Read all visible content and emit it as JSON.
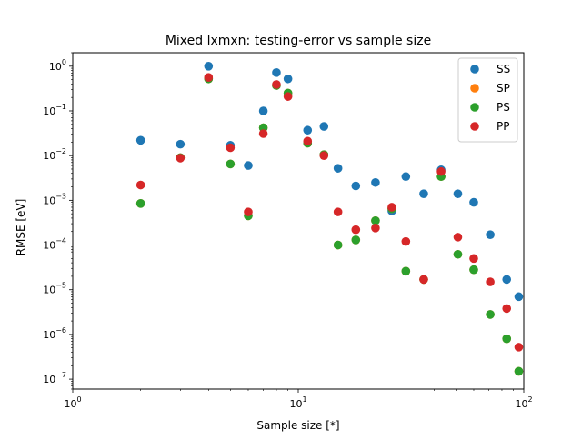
{
  "chart_data": {
    "type": "scatter",
    "title": "Mixed lxmxn: testing-error vs sample size",
    "xlabel": "Sample size [*]",
    "ylabel": "RMSE [eV]",
    "xscale": "log",
    "yscale": "log",
    "xlim": [
      1,
      100
    ],
    "ylim": [
      6e-08,
      2
    ],
    "x_ticks": [
      {
        "value": 1,
        "base": "10",
        "exp": "0"
      },
      {
        "value": 10,
        "base": "10",
        "exp": "1"
      },
      {
        "value": 100,
        "base": "10",
        "exp": "2"
      }
    ],
    "y_ticks": [
      {
        "value": 1,
        "base": "10",
        "exp": "0"
      },
      {
        "value": 0.1,
        "base": "10",
        "exp": "−1"
      },
      {
        "value": 0.01,
        "base": "10",
        "exp": "−2"
      },
      {
        "value": 0.001,
        "base": "10",
        "exp": "−3"
      },
      {
        "value": 0.0001,
        "base": "10",
        "exp": "−4"
      },
      {
        "value": 1e-05,
        "base": "10",
        "exp": "−5"
      },
      {
        "value": 1e-06,
        "base": "10",
        "exp": "−6"
      },
      {
        "value": 1e-07,
        "base": "10",
        "exp": "−7"
      }
    ],
    "legend_position": "top-right",
    "grid": false,
    "series": [
      {
        "name": "SS",
        "color": "#1f77b4",
        "points": [
          [
            2,
            0.022
          ],
          [
            3,
            0.018
          ],
          [
            4,
            1.0
          ],
          [
            5,
            0.017
          ],
          [
            6,
            0.006
          ],
          [
            7,
            0.1
          ],
          [
            8,
            0.72
          ],
          [
            9,
            0.52
          ],
          [
            11,
            0.037
          ],
          [
            13,
            0.045
          ],
          [
            15,
            0.0052
          ],
          [
            18,
            0.0021
          ],
          [
            22,
            0.0025
          ],
          [
            26,
            0.00058
          ],
          [
            30,
            0.0034
          ],
          [
            36,
            0.0014
          ],
          [
            43,
            0.0048
          ],
          [
            51,
            0.0014
          ],
          [
            60,
            0.0009
          ],
          [
            71,
            0.00017
          ],
          [
            84,
            1.7e-05
          ],
          [
            95,
            7e-06
          ]
        ]
      },
      {
        "name": "SP",
        "color": "#ff7f0e",
        "points": [
          [
            2,
            0.00085
          ],
          [
            3,
            0.009
          ],
          [
            4,
            0.52
          ],
          [
            5,
            0.0065
          ],
          [
            6,
            0.00045
          ],
          [
            7,
            0.042
          ],
          [
            8,
            0.37
          ],
          [
            9,
            0.25
          ],
          [
            11,
            0.019
          ],
          [
            13,
            0.0105
          ],
          [
            15,
            0.0001
          ],
          [
            18,
            0.00013
          ],
          [
            22,
            0.00035
          ],
          [
            26,
            0.00065
          ],
          [
            30,
            2.6e-05
          ],
          [
            36,
            1.7e-05
          ],
          [
            43,
            0.0034
          ],
          [
            51,
            6.2e-05
          ],
          [
            60,
            2.8e-05
          ],
          [
            71,
            2.8e-06
          ],
          [
            84,
            8e-07
          ],
          [
            95,
            1.5e-07
          ]
        ]
      },
      {
        "name": "PS",
        "color": "#2ca02c",
        "points": [
          [
            2,
            0.00085
          ],
          [
            3,
            0.009
          ],
          [
            4,
            0.52
          ],
          [
            5,
            0.0065
          ],
          [
            6,
            0.00045
          ],
          [
            7,
            0.042
          ],
          [
            8,
            0.37
          ],
          [
            9,
            0.25
          ],
          [
            11,
            0.019
          ],
          [
            13,
            0.0105
          ],
          [
            15,
            0.0001
          ],
          [
            18,
            0.00013
          ],
          [
            22,
            0.00035
          ],
          [
            26,
            0.00065
          ],
          [
            30,
            2.6e-05
          ],
          [
            36,
            1.7e-05
          ],
          [
            43,
            0.0034
          ],
          [
            51,
            6.2e-05
          ],
          [
            60,
            2.8e-05
          ],
          [
            71,
            2.8e-06
          ],
          [
            84,
            8e-07
          ],
          [
            95,
            1.5e-07
          ]
        ]
      },
      {
        "name": "PP",
        "color": "#d62728",
        "points": [
          [
            2,
            0.0022
          ],
          [
            3,
            0.0088
          ],
          [
            4,
            0.56
          ],
          [
            5,
            0.015
          ],
          [
            6,
            0.00055
          ],
          [
            7,
            0.031
          ],
          [
            8,
            0.39
          ],
          [
            9,
            0.21
          ],
          [
            11,
            0.021
          ],
          [
            13,
            0.01
          ],
          [
            15,
            0.00055
          ],
          [
            18,
            0.00022
          ],
          [
            22,
            0.00024
          ],
          [
            26,
            0.0007
          ],
          [
            30,
            0.00012
          ],
          [
            36,
            1.7e-05
          ],
          [
            43,
            0.0044
          ],
          [
            51,
            0.00015
          ],
          [
            60,
            5e-05
          ],
          [
            71,
            1.5e-05
          ],
          [
            84,
            3.8e-06
          ],
          [
            95,
            5.2e-07
          ]
        ]
      }
    ]
  }
}
